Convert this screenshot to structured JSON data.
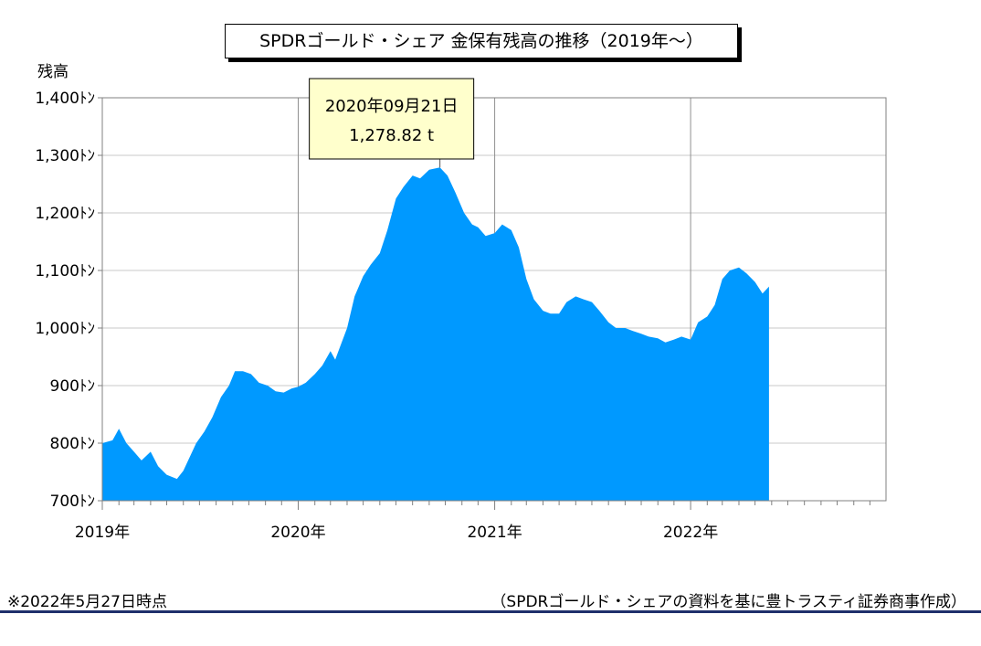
{
  "colors": {
    "area": "#0099ff",
    "grid": "#c8c8c8",
    "callout_bg": "#ffffcc",
    "footer_rule": "#1f2f6b"
  },
  "footer": {
    "note": "※2022年5月27日時点",
    "source": "（SPDRゴールド・シェアの資料を基に豊トラスティ証券商事作成）"
  },
  "chart_data": {
    "type": "area",
    "title": "SPDRゴールド・シェア 金保有残高の推移（2019年～）",
    "ylabel": "残高",
    "ylim": [
      700,
      1400
    ],
    "xlim": [
      "2019-01-01",
      "2022-12-31"
    ],
    "y_tick_labels": [
      "700ﾄﾝ",
      "800ﾄﾝ",
      "900ﾄﾝ",
      "1,000ﾄﾝ",
      "1,100ﾄﾝ",
      "1,200ﾄﾝ",
      "1,300ﾄﾝ",
      "1,400ﾄﾝ"
    ],
    "x_tick_labels": [
      "2019年",
      "2020年",
      "2021年",
      "2022年"
    ],
    "grid": true,
    "series": [
      {
        "x": [
          "2019-01-01",
          "2019-01-20",
          "2019-02-01",
          "2019-02-15",
          "2019-03-01",
          "2019-03-15",
          "2019-04-01",
          "2019-04-15",
          "2019-05-01",
          "2019-05-20",
          "2019-06-01",
          "2019-06-10",
          "2019-06-25",
          "2019-07-10",
          "2019-07-25",
          "2019-08-10",
          "2019-08-25",
          "2019-09-05",
          "2019-09-20",
          "2019-10-05",
          "2019-10-20",
          "2019-11-05",
          "2019-11-20",
          "2019-12-05",
          "2019-12-20",
          "2020-01-01",
          "2020-01-15",
          "2020-02-01",
          "2020-02-15",
          "2020-03-01",
          "2020-03-10",
          "2020-03-20",
          "2020-04-01",
          "2020-04-15",
          "2020-05-01",
          "2020-05-15",
          "2020-06-01",
          "2020-06-15",
          "2020-07-01",
          "2020-07-15",
          "2020-08-01",
          "2020-08-15",
          "2020-09-01",
          "2020-09-21",
          "2020-10-05",
          "2020-10-20",
          "2020-11-05",
          "2020-11-20",
          "2020-12-01",
          "2020-12-15",
          "2021-01-01",
          "2021-01-15",
          "2021-02-01",
          "2021-02-15",
          "2021-03-01",
          "2021-03-15",
          "2021-04-01",
          "2021-04-15",
          "2021-05-01",
          "2021-05-15",
          "2021-06-01",
          "2021-06-15",
          "2021-07-01",
          "2021-07-15",
          "2021-08-01",
          "2021-08-15",
          "2021-09-01",
          "2021-09-15",
          "2021-10-01",
          "2021-10-15",
          "2021-11-01",
          "2021-11-15",
          "2021-12-01",
          "2021-12-15",
          "2022-01-01",
          "2022-01-15",
          "2022-02-01",
          "2022-02-15",
          "2022-03-01",
          "2022-03-15",
          "2022-04-01",
          "2022-04-15",
          "2022-05-01",
          "2022-05-15",
          "2022-05-27"
        ],
        "values": [
          800,
          805,
          825,
          800,
          785,
          770,
          785,
          760,
          745,
          738,
          752,
          770,
          800,
          820,
          845,
          880,
          900,
          925,
          925,
          920,
          905,
          900,
          890,
          888,
          895,
          898,
          905,
          920,
          935,
          960,
          945,
          970,
          1000,
          1055,
          1090,
          1110,
          1130,
          1170,
          1225,
          1245,
          1265,
          1260,
          1275,
          1278.82,
          1265,
          1235,
          1200,
          1180,
          1175,
          1160,
          1165,
          1180,
          1170,
          1140,
          1085,
          1050,
          1030,
          1025,
          1025,
          1045,
          1055,
          1050,
          1045,
          1030,
          1010,
          1000,
          1000,
          995,
          990,
          985,
          982,
          975,
          980,
          985,
          980,
          1010,
          1020,
          1040,
          1085,
          1100,
          1105,
          1095,
          1080,
          1060,
          1072
        ]
      }
    ],
    "annotations": [
      {
        "date": "2020年09月21日",
        "value": "1,278.82 t"
      }
    ]
  }
}
